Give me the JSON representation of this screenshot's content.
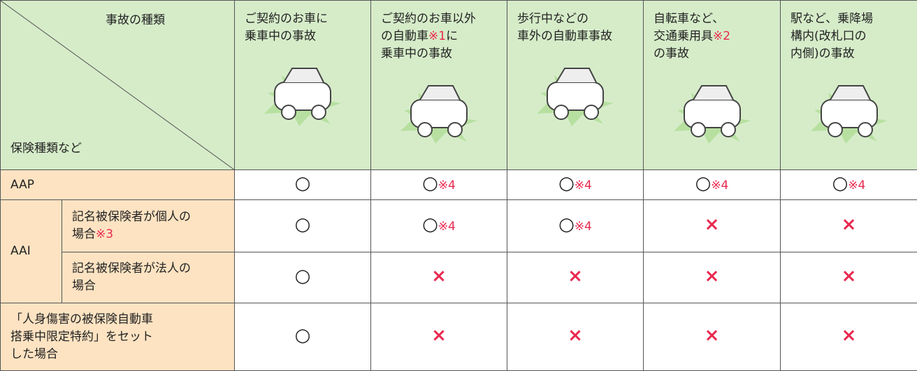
{
  "header": {
    "top_label": "事故の種類",
    "bottom_label": "保険種類など",
    "columns": [
      [
        [
          {
            "text": "ご契約のお車に"
          }
        ],
        [
          {
            "text": "乗車中の事故"
          }
        ]
      ],
      [
        [
          {
            "text": "ご契約のお車以外"
          }
        ],
        [
          {
            "text": "の自動車"
          },
          {
            "note": "※1"
          },
          {
            "text": "に"
          }
        ],
        [
          {
            "text": "乗車中の事故"
          }
        ]
      ],
      [
        [
          {
            "text": "歩行中などの"
          }
        ],
        [
          {
            "text": "車外の自動車事故"
          }
        ]
      ],
      [
        [
          {
            "text": "自転車など、"
          }
        ],
        [
          {
            "text": "交通乗用具"
          },
          {
            "note": "※2"
          }
        ],
        [
          {
            "text": "の事故"
          }
        ]
      ],
      [
        [
          {
            "text": "駅など、乗降場"
          }
        ],
        [
          {
            "text": "構内(改札口の"
          }
        ],
        [
          {
            "text": "内側)の事故"
          }
        ]
      ]
    ]
  },
  "table": {
    "rows": [
      {
        "label": [
          [
            {
              "text": "AAP"
            }
          ]
        ],
        "cells": [
          {
            "mark": "○"
          },
          {
            "mark": "○",
            "note": "※4"
          },
          {
            "mark": "○",
            "note": "※4"
          },
          {
            "mark": "○",
            "note": "※4"
          },
          {
            "mark": "○",
            "note": "※4"
          }
        ]
      },
      {
        "group": "AAI",
        "label": [
          [
            {
              "text": "記名被保険者が個人の"
            }
          ],
          [
            {
              "text": "場合"
            },
            {
              "note": "※3"
            }
          ]
        ],
        "cells": [
          {
            "mark": "○"
          },
          {
            "mark": "○",
            "note": "※4"
          },
          {
            "mark": "○",
            "note": "※4"
          },
          {
            "mark": "×"
          },
          {
            "mark": "×"
          }
        ]
      },
      {
        "label": [
          [
            {
              "text": "記名被保険者が法人の"
            }
          ],
          [
            {
              "text": "場合"
            }
          ]
        ],
        "cells": [
          {
            "mark": "○"
          },
          {
            "mark": "×"
          },
          {
            "mark": "×"
          },
          {
            "mark": "×"
          },
          {
            "mark": "×"
          }
        ]
      },
      {
        "label": [
          [
            {
              "text": "「人身傷害の被保険自動車"
            }
          ],
          [
            {
              "text": "搭乗中限定特約」をセット"
            }
          ],
          [
            {
              "text": "した場合"
            }
          ]
        ],
        "cells": [
          {
            "mark": "○"
          },
          {
            "mark": "×"
          },
          {
            "mark": "×"
          },
          {
            "mark": "×"
          },
          {
            "mark": "×"
          }
        ]
      }
    ]
  }
}
